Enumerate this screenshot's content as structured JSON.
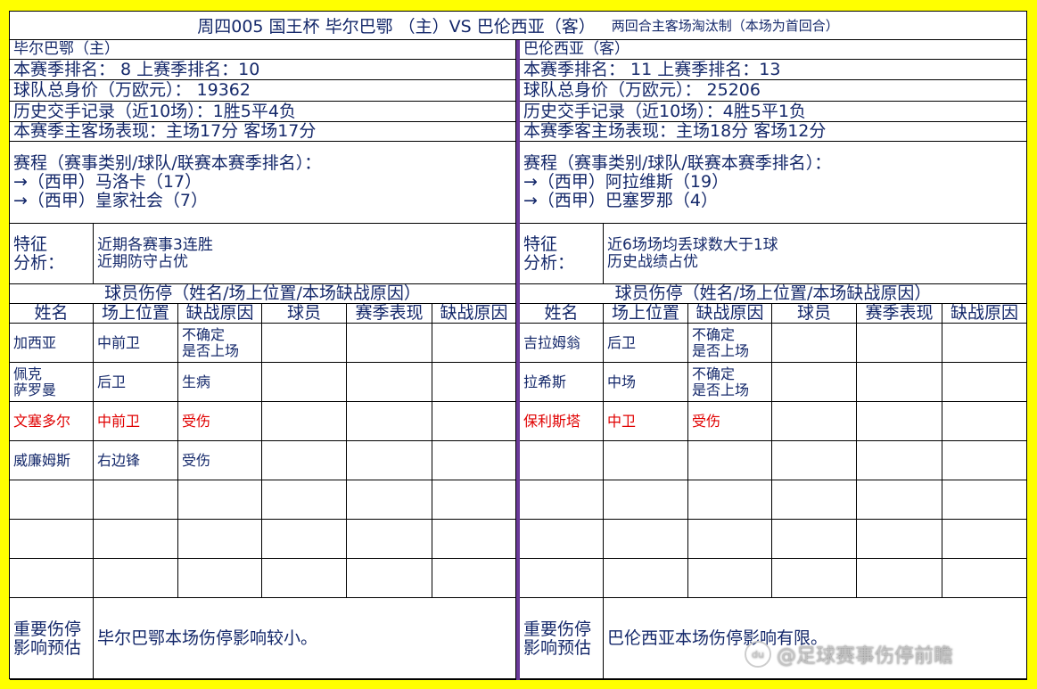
{
  "title": {
    "main": "周四005  国王杯 毕尔巴鄂 （主）VS 巴伦西亚（客）",
    "sub": "两回合主客场淘汰制（本场为首回合）"
  },
  "home": {
    "team": "毕尔巴鄂（主）",
    "rank": "本赛季排名：    8        上赛季排名：10",
    "value": "球队总身价（万欧元）：  19362",
    "h2h": "历史交手记录（近10场）：1胜5平4负",
    "homeaway": "本赛季主客场表现：主场17分   客场17分",
    "schedule": "赛程（赛事类别/球队/联赛本赛季排名）：\n→（西甲）马洛卡（17）\n→（西甲）皇家社会（7）",
    "feature_label": "特征\n分析：",
    "features": "近期各赛事3连胜\n近期防守占优",
    "injury_title": "球员伤停（姓名/场上位置/本场缺战原因）",
    "headers": [
      "姓名",
      "场上位置",
      "缺战原因",
      "球员",
      "赛季表现",
      "缺战原因"
    ],
    "players": [
      {
        "name": "加西亚",
        "pos": "中前卫",
        "reason": "不确定\n是否上场",
        "highlight": false
      },
      {
        "name": "佩克\n萨罗曼",
        "pos": "后卫",
        "reason": "生病",
        "highlight": false
      },
      {
        "name": "文塞多尔",
        "pos": "中前卫",
        "reason": "受伤",
        "highlight": true
      },
      {
        "name": "威廉姆斯",
        "pos": "右边锋",
        "reason": "受伤",
        "highlight": false
      }
    ],
    "summary_label": "重要伤停\n影响预估",
    "summary": "毕尔巴鄂本场伤停影响较小。"
  },
  "away": {
    "team": "巴伦西亚（客）",
    "rank": "本赛季排名：      11      上赛季排名：13",
    "value": "球队总身价（万欧元）：  25206",
    "h2h": "历史交手记录（近10场）：4胜5平1负",
    "homeaway": "本赛季客主场表现：主场18分   客场12分",
    "schedule": "赛程（赛事类别/球队/联赛本赛季排名）：\n→（西甲）阿拉维斯（19）\n→（西甲）巴塞罗那（4）",
    "feature_label": "特征\n分析：",
    "features": "近6场场均丢球数大于1球\n历史战绩占优",
    "injury_title": "球员伤停（姓名/场上位置/本场缺战原因）",
    "headers": [
      "姓名",
      "场上位置",
      "缺战原因",
      "球员",
      "赛季表现",
      "缺战原因"
    ],
    "players": [
      {
        "name": "吉拉姆翁",
        "pos": "后卫",
        "reason": "不确定\n是否上场",
        "highlight": false
      },
      {
        "name": "拉希斯",
        "pos": "中场",
        "reason": "不确定\n是否上场",
        "highlight": false
      },
      {
        "name": "保利斯塔",
        "pos": "中卫",
        "reason": "受伤",
        "highlight": true
      }
    ],
    "summary_label": "重要伤停\n影响预估",
    "summary": "巴伦西亚本场伤停影响有限。"
  },
  "colors": {
    "text": "#14286a",
    "highlight": "#e00000",
    "background": "#ffff00",
    "divider": "#6b3a9a"
  },
  "watermark": "@足球赛事伤停前瞻"
}
